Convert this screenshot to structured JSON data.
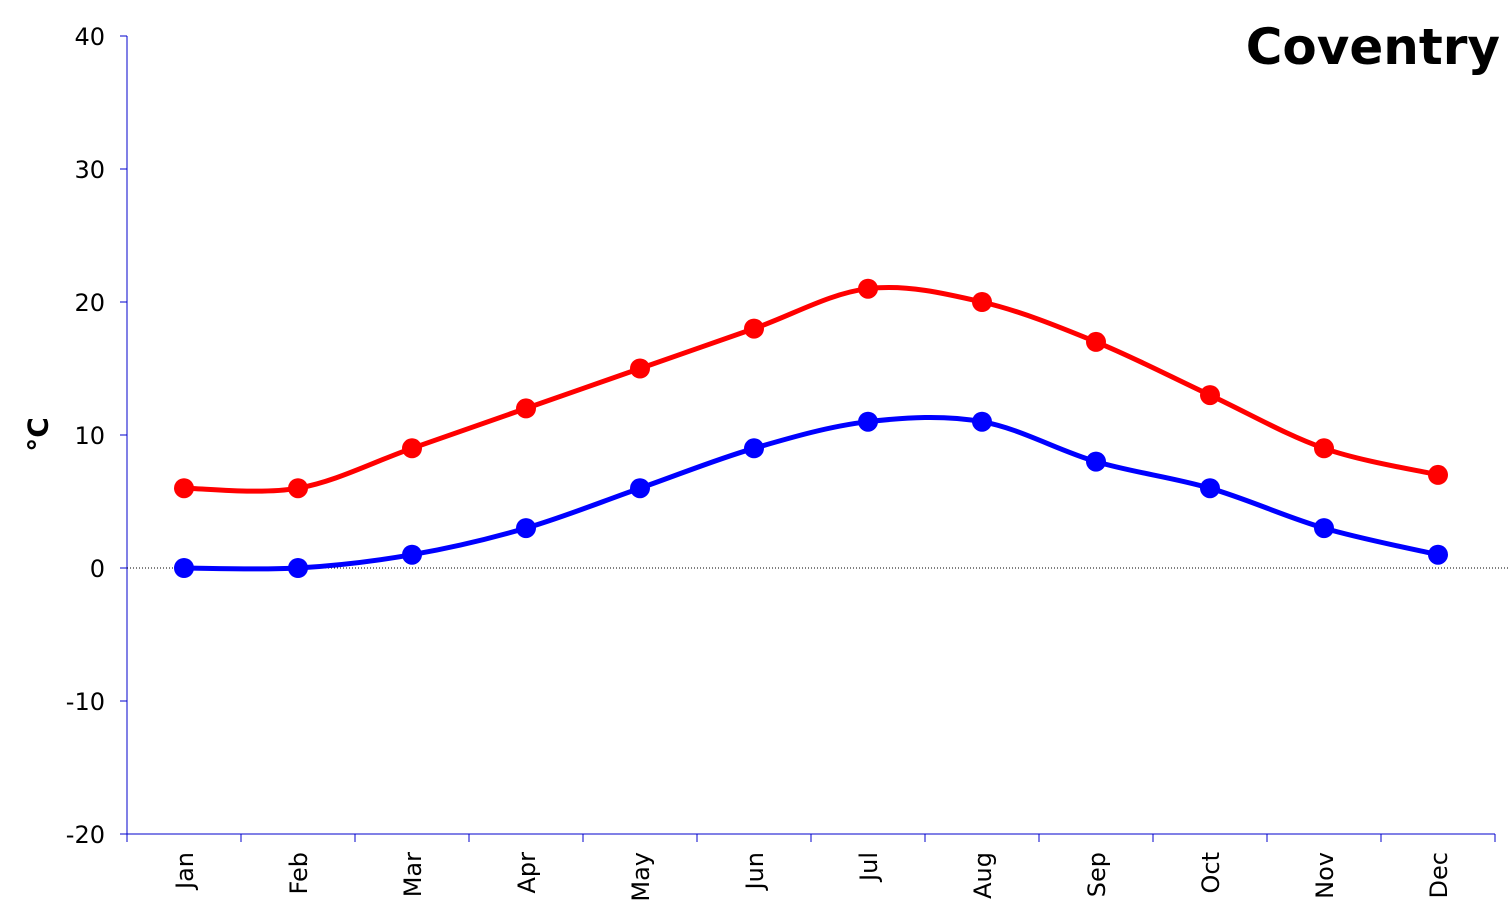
{
  "chart_data": {
    "type": "line",
    "title": "Coventry",
    "xlabel": "",
    "ylabel": "°C",
    "categories": [
      "Jan",
      "Feb",
      "Mar",
      "Apr",
      "May",
      "Jun",
      "Jul",
      "Aug",
      "Sep",
      "Oct",
      "Nov",
      "Dec"
    ],
    "ylim": [
      -20,
      40
    ],
    "yticks": [
      "40",
      "30",
      "20",
      "10",
      "0",
      "-10",
      "-20"
    ],
    "series": [
      {
        "color": "#ff0000",
        "values": [
          6,
          6,
          9,
          12,
          15,
          18,
          21,
          20,
          17,
          13,
          9,
          7
        ]
      },
      {
        "color": "#0000ff",
        "values": [
          0,
          0,
          1,
          3,
          6,
          9,
          11,
          11,
          8,
          6,
          3,
          1
        ]
      }
    ],
    "grid": false,
    "zero_line": "dotted"
  }
}
